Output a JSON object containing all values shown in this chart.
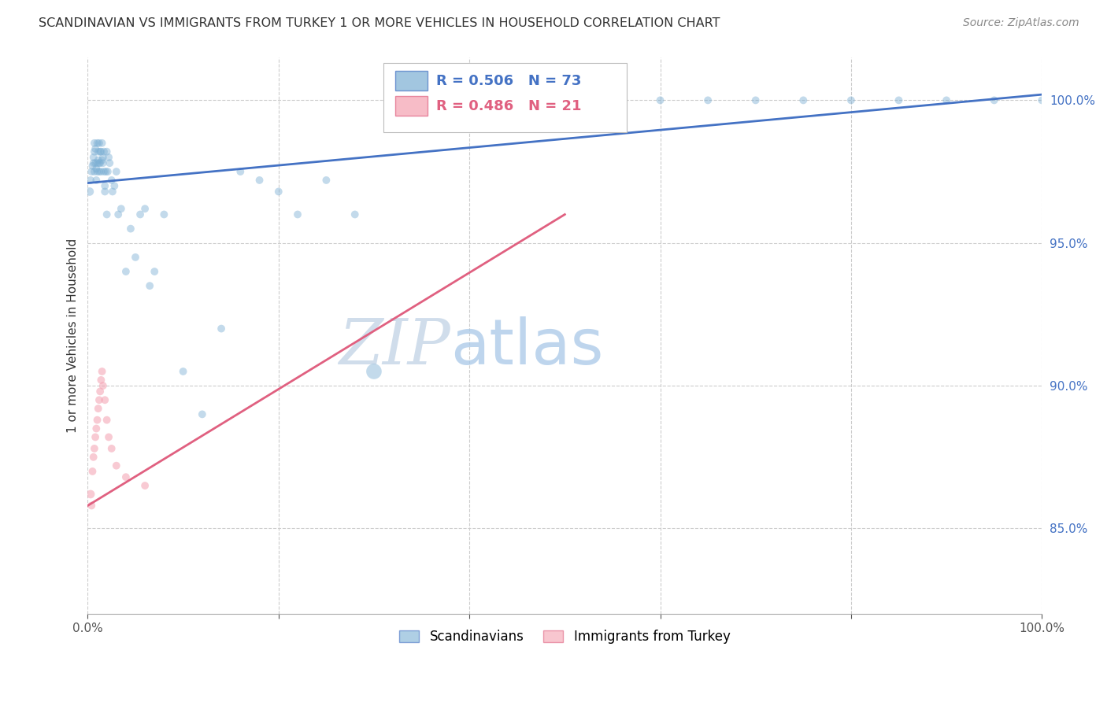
{
  "title": "SCANDINAVIAN VS IMMIGRANTS FROM TURKEY 1 OR MORE VEHICLES IN HOUSEHOLD CORRELATION CHART",
  "source": "Source: ZipAtlas.com",
  "ylabel": "1 or more Vehicles in Household",
  "xlim": [
    0.0,
    1.0
  ],
  "ylim": [
    0.82,
    1.015
  ],
  "ytick_positions": [
    0.85,
    0.9,
    0.95,
    1.0
  ],
  "ytick_labels": [
    "85.0%",
    "90.0%",
    "95.0%",
    "100.0%"
  ],
  "blue_R": 0.506,
  "blue_N": 73,
  "pink_R": 0.486,
  "pink_N": 21,
  "blue_color": "#7BAFD4",
  "pink_color": "#F4A0B0",
  "blue_line_color": "#4472C4",
  "pink_line_color": "#E06080",
  "watermark_zip": "ZIP",
  "watermark_atlas": "atlas",
  "legend_scandinavians": "Scandinavians",
  "legend_turkey": "Immigrants from Turkey",
  "blue_x": [
    0.002,
    0.003,
    0.004,
    0.005,
    0.006,
    0.006,
    0.007,
    0.007,
    0.007,
    0.008,
    0.008,
    0.009,
    0.009,
    0.01,
    0.01,
    0.01,
    0.011,
    0.011,
    0.012,
    0.012,
    0.012,
    0.013,
    0.013,
    0.014,
    0.014,
    0.015,
    0.015,
    0.016,
    0.016,
    0.017,
    0.017,
    0.018,
    0.018,
    0.019,
    0.02,
    0.02,
    0.021,
    0.022,
    0.023,
    0.025,
    0.026,
    0.028,
    0.03,
    0.032,
    0.035,
    0.04,
    0.045,
    0.05,
    0.055,
    0.06,
    0.065,
    0.07,
    0.08,
    0.1,
    0.12,
    0.14,
    0.16,
    0.18,
    0.2,
    0.22,
    0.25,
    0.28,
    0.3,
    0.55,
    0.6,
    0.65,
    0.7,
    0.75,
    0.8,
    0.85,
    0.9,
    0.95,
    1.0
  ],
  "blue_y": [
    0.968,
    0.972,
    0.975,
    0.977,
    0.978,
    0.98,
    0.982,
    0.985,
    0.975,
    0.978,
    0.983,
    0.976,
    0.972,
    0.985,
    0.978,
    0.975,
    0.982,
    0.979,
    0.985,
    0.978,
    0.975,
    0.982,
    0.978,
    0.975,
    0.982,
    0.979,
    0.985,
    0.978,
    0.98,
    0.982,
    0.975,
    0.968,
    0.97,
    0.975,
    0.96,
    0.982,
    0.975,
    0.98,
    0.978,
    0.972,
    0.968,
    0.97,
    0.975,
    0.96,
    0.962,
    0.94,
    0.955,
    0.945,
    0.96,
    0.962,
    0.935,
    0.94,
    0.96,
    0.905,
    0.89,
    0.92,
    0.975,
    0.972,
    0.968,
    0.96,
    0.972,
    0.96,
    0.905,
    1.0,
    1.0,
    1.0,
    1.0,
    1.0,
    1.0,
    1.0,
    1.0,
    1.0,
    1.0
  ],
  "blue_sizes": [
    60,
    50,
    50,
    50,
    50,
    50,
    50,
    50,
    50,
    50,
    50,
    50,
    50,
    50,
    50,
    50,
    50,
    50,
    50,
    50,
    50,
    50,
    50,
    50,
    50,
    50,
    50,
    50,
    50,
    50,
    50,
    50,
    50,
    50,
    50,
    50,
    50,
    50,
    50,
    50,
    50,
    50,
    50,
    50,
    50,
    50,
    50,
    50,
    50,
    50,
    50,
    50,
    50,
    50,
    50,
    50,
    50,
    50,
    50,
    50,
    50,
    50,
    200,
    50,
    50,
    50,
    50,
    50,
    50,
    50,
    50,
    50,
    50
  ],
  "pink_x": [
    0.003,
    0.004,
    0.005,
    0.006,
    0.007,
    0.008,
    0.009,
    0.01,
    0.011,
    0.012,
    0.013,
    0.014,
    0.015,
    0.016,
    0.018,
    0.02,
    0.022,
    0.025,
    0.03,
    0.04,
    0.06
  ],
  "pink_y": [
    0.862,
    0.858,
    0.87,
    0.875,
    0.878,
    0.882,
    0.885,
    0.888,
    0.892,
    0.895,
    0.898,
    0.902,
    0.905,
    0.9,
    0.895,
    0.888,
    0.882,
    0.878,
    0.872,
    0.868,
    0.865
  ],
  "pink_sizes": [
    60,
    50,
    50,
    50,
    50,
    50,
    50,
    50,
    50,
    50,
    50,
    50,
    50,
    50,
    50,
    50,
    50,
    50,
    50,
    50,
    50
  ],
  "blue_line_x0": 0.0,
  "blue_line_y0": 0.971,
  "blue_line_x1": 1.0,
  "blue_line_y1": 1.002,
  "pink_line_x0": 0.0,
  "pink_line_y0": 0.858,
  "pink_line_x1": 0.5,
  "pink_line_y1": 0.96
}
